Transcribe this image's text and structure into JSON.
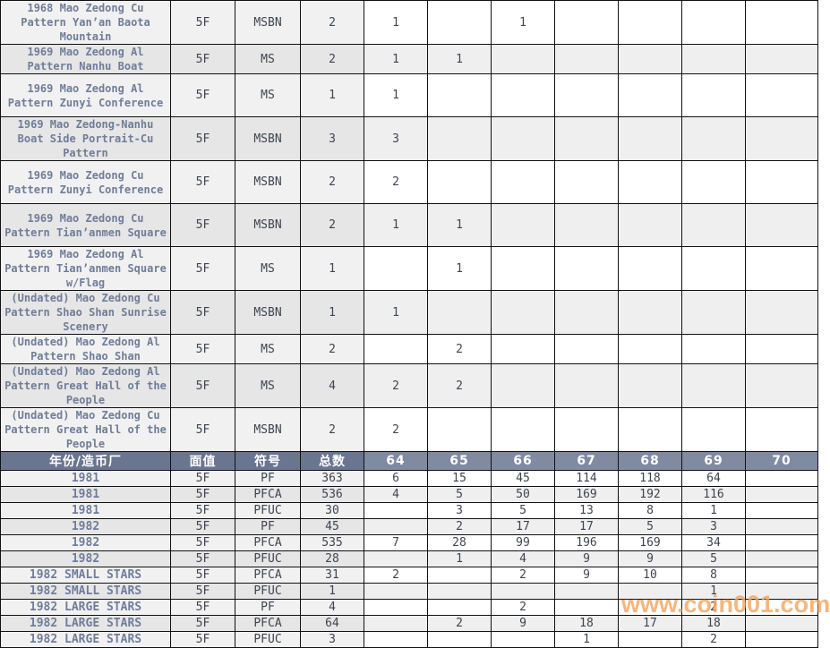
{
  "table": {
    "header": {
      "col_name": "年份/造币厂",
      "col_denomination": "面值",
      "col_code": "符号",
      "col_total": "总数",
      "grade_labels": [
        "64",
        "65",
        "66",
        "67",
        "68",
        "69",
        "70"
      ]
    },
    "pattern_rows": [
      {
        "name": "1968 Mao Zedong Cu Pattern Yan’an Baota Mountain",
        "denomination": "5F",
        "code": "MSBN",
        "total": "2",
        "grades": [
          "1",
          "",
          "1",
          "",
          "",
          "",
          ""
        ]
      },
      {
        "name": "1969 Mao Zedong Al Pattern Nanhu Boat",
        "denomination": "5F",
        "code": "MS",
        "total": "2",
        "grades": [
          "1",
          "1",
          "",
          "",
          "",
          "",
          ""
        ]
      },
      {
        "name": "1969 Mao Zedong Al Pattern Zunyi Conference",
        "denomination": "5F",
        "code": "MS",
        "total": "1",
        "grades": [
          "1",
          "",
          "",
          "",
          "",
          "",
          ""
        ]
      },
      {
        "name": "1969 Mao Zedong-Nanhu Boat Side Portrait-Cu Pattern",
        "denomination": "5F",
        "code": "MSBN",
        "total": "3",
        "grades": [
          "3",
          "",
          "",
          "",
          "",
          "",
          ""
        ]
      },
      {
        "name": "1969 Mao Zedong Cu Pattern Zunyi Conference",
        "denomination": "5F",
        "code": "MSBN",
        "total": "2",
        "grades": [
          "2",
          "",
          "",
          "",
          "",
          "",
          ""
        ]
      },
      {
        "name": "1969 Mao Zedong Cu Pattern Tian’anmen Square",
        "denomination": "5F",
        "code": "MSBN",
        "total": "2",
        "grades": [
          "1",
          "1",
          "",
          "",
          "",
          "",
          ""
        ]
      },
      {
        "name": "1969 Mao Zedong Al Pattern Tian’anmen Square w/Flag",
        "denomination": "5F",
        "code": "MS",
        "total": "1",
        "grades": [
          "",
          "1",
          "",
          "",
          "",
          "",
          ""
        ]
      },
      {
        "name": "(Undated) Mao Zedong Cu Pattern Shao Shan Sunrise Scenery",
        "denomination": "5F",
        "code": "MSBN",
        "total": "1",
        "grades": [
          "1",
          "",
          "",
          "",
          "",
          "",
          ""
        ]
      },
      {
        "name": "(Undated) Mao Zedong Al Pattern Shao Shan",
        "denomination": "5F",
        "code": "MS",
        "total": "2",
        "grades": [
          "",
          "2",
          "",
          "",
          "",
          "",
          ""
        ]
      },
      {
        "name": "(Undated) Mao Zedong Al Pattern Great Hall of the People",
        "denomination": "5F",
        "code": "MS",
        "total": "4",
        "grades": [
          "2",
          "2",
          "",
          "",
          "",
          "",
          ""
        ]
      },
      {
        "name": "(Undated) Mao Zedong Cu Pattern Great Hall of the People",
        "denomination": "5F",
        "code": "MSBN",
        "total": "2",
        "grades": [
          "2",
          "",
          "",
          "",
          "",
          "",
          ""
        ]
      }
    ],
    "year_rows": [
      {
        "name": "1981",
        "denomination": "5F",
        "code": "PF",
        "total": "363",
        "grades": [
          "6",
          "15",
          "45",
          "114",
          "118",
          "64",
          ""
        ]
      },
      {
        "name": "1981",
        "denomination": "5F",
        "code": "PFCA",
        "total": "536",
        "grades": [
          "4",
          "5",
          "50",
          "169",
          "192",
          "116",
          ""
        ]
      },
      {
        "name": "1981",
        "denomination": "5F",
        "code": "PFUC",
        "total": "30",
        "grades": [
          "",
          "3",
          "5",
          "13",
          "8",
          "1",
          ""
        ]
      },
      {
        "name": "1982",
        "denomination": "5F",
        "code": "PF",
        "total": "45",
        "grades": [
          "",
          "2",
          "17",
          "17",
          "5",
          "3",
          ""
        ]
      },
      {
        "name": "1982",
        "denomination": "5F",
        "code": "PFCA",
        "total": "535",
        "grades": [
          "7",
          "28",
          "99",
          "196",
          "169",
          "34",
          ""
        ]
      },
      {
        "name": "1982",
        "denomination": "5F",
        "code": "PFUC",
        "total": "28",
        "grades": [
          "",
          "1",
          "4",
          "9",
          "9",
          "5",
          ""
        ]
      },
      {
        "name": "1982 SMALL STARS",
        "denomination": "5F",
        "code": "PFCA",
        "total": "31",
        "grades": [
          "2",
          "",
          "2",
          "9",
          "10",
          "8",
          ""
        ]
      },
      {
        "name": "1982 SMALL STARS",
        "denomination": "5F",
        "code": "PFUC",
        "total": "1",
        "grades": [
          "",
          "",
          "",
          "",
          "",
          "1",
          ""
        ]
      },
      {
        "name": "1982 LARGE STARS",
        "denomination": "5F",
        "code": "PF",
        "total": "4",
        "grades": [
          "",
          "",
          "2",
          "",
          "",
          "2",
          ""
        ]
      },
      {
        "name": "1982 LARGE STARS",
        "denomination": "5F",
        "code": "PFCA",
        "total": "64",
        "grades": [
          "",
          "2",
          "9",
          "18",
          "17",
          "18",
          ""
        ]
      },
      {
        "name": "1982 LARGE STARS",
        "denomination": "5F",
        "code": "PFUC",
        "total": "3",
        "grades": [
          "",
          "",
          "",
          "1",
          "",
          "2",
          ""
        ]
      }
    ]
  },
  "watermark": {
    "text": "www.coin001.com"
  },
  "colors": {
    "header_dark": "#6a7590",
    "header_light": "#808aa1",
    "header_text": "#ffffff",
    "name_text": "#6f7d99",
    "value_text": "#3e4451",
    "stripe_light": "#f1f1f1",
    "stripe_dark": "#e6e6e6",
    "grade_stripe": "#efefef",
    "border": "#111111",
    "watermark": "#f4a25c"
  }
}
